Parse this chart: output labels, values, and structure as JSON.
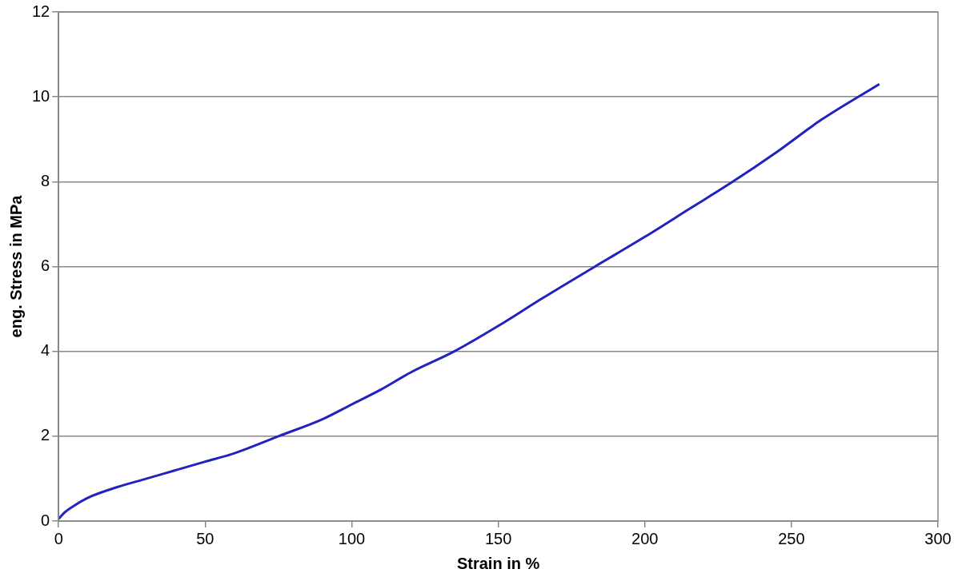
{
  "chart_data": {
    "type": "line",
    "xlabel": "Strain in %",
    "ylabel": "eng. Stress in MPa",
    "xlim": [
      0,
      300
    ],
    "xticks": [
      0,
      50,
      100,
      150,
      200,
      250,
      300
    ],
    "ylim": [
      0,
      12
    ],
    "yticks": [
      0,
      2,
      4,
      6,
      8,
      10,
      12
    ],
    "grid": "y",
    "marker": "none",
    "line_style": "solid",
    "series": [
      {
        "color": "#2222c0",
        "x": [
          0,
          2,
          5,
          10,
          20,
          30,
          40,
          50,
          60,
          75,
          90,
          100,
          110,
          120,
          135,
          150,
          165,
          183,
          200,
          215,
          230,
          245,
          260,
          280
        ],
        "values": [
          0.05,
          0.2,
          0.35,
          0.55,
          0.8,
          1.0,
          1.2,
          1.4,
          1.6,
          2.0,
          2.4,
          2.75,
          3.1,
          3.5,
          4.0,
          4.6,
          5.25,
          6.0,
          6.7,
          7.35,
          8.0,
          8.7,
          9.45,
          10.3
        ]
      }
    ]
  }
}
